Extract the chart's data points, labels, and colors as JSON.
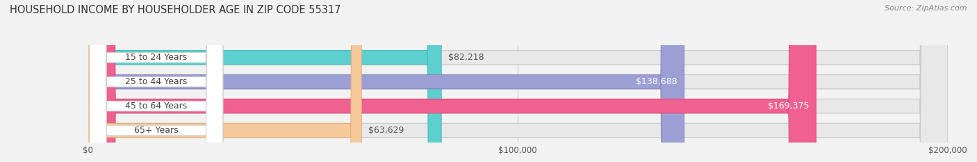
{
  "title": "HOUSEHOLD INCOME BY HOUSEHOLDER AGE IN ZIP CODE 55317",
  "source": "Source: ZipAtlas.com",
  "categories": [
    "15 to 24 Years",
    "25 to 44 Years",
    "45 to 64 Years",
    "65+ Years"
  ],
  "values": [
    82218,
    138688,
    169375,
    63629
  ],
  "bar_colors": [
    "#5ECFCF",
    "#9B9FD4",
    "#F06090",
    "#F5C99A"
  ],
  "bar_edge_colors": [
    "#4BBFBF",
    "#8888C0",
    "#E04878",
    "#E8B07A"
  ],
  "value_in_bar": [
    false,
    true,
    true,
    false
  ],
  "background_color": "#f2f2f2",
  "bar_bg_color": "#e8e8e8",
  "xmax": 200000,
  "xtick_labels": [
    "$0",
    "$100,000",
    "$200,000"
  ],
  "title_fontsize": 10.5,
  "source_fontsize": 8,
  "label_fontsize": 9,
  "value_fontsize": 9,
  "bar_height": 0.58,
  "fig_width": 14.06,
  "fig_height": 2.33
}
